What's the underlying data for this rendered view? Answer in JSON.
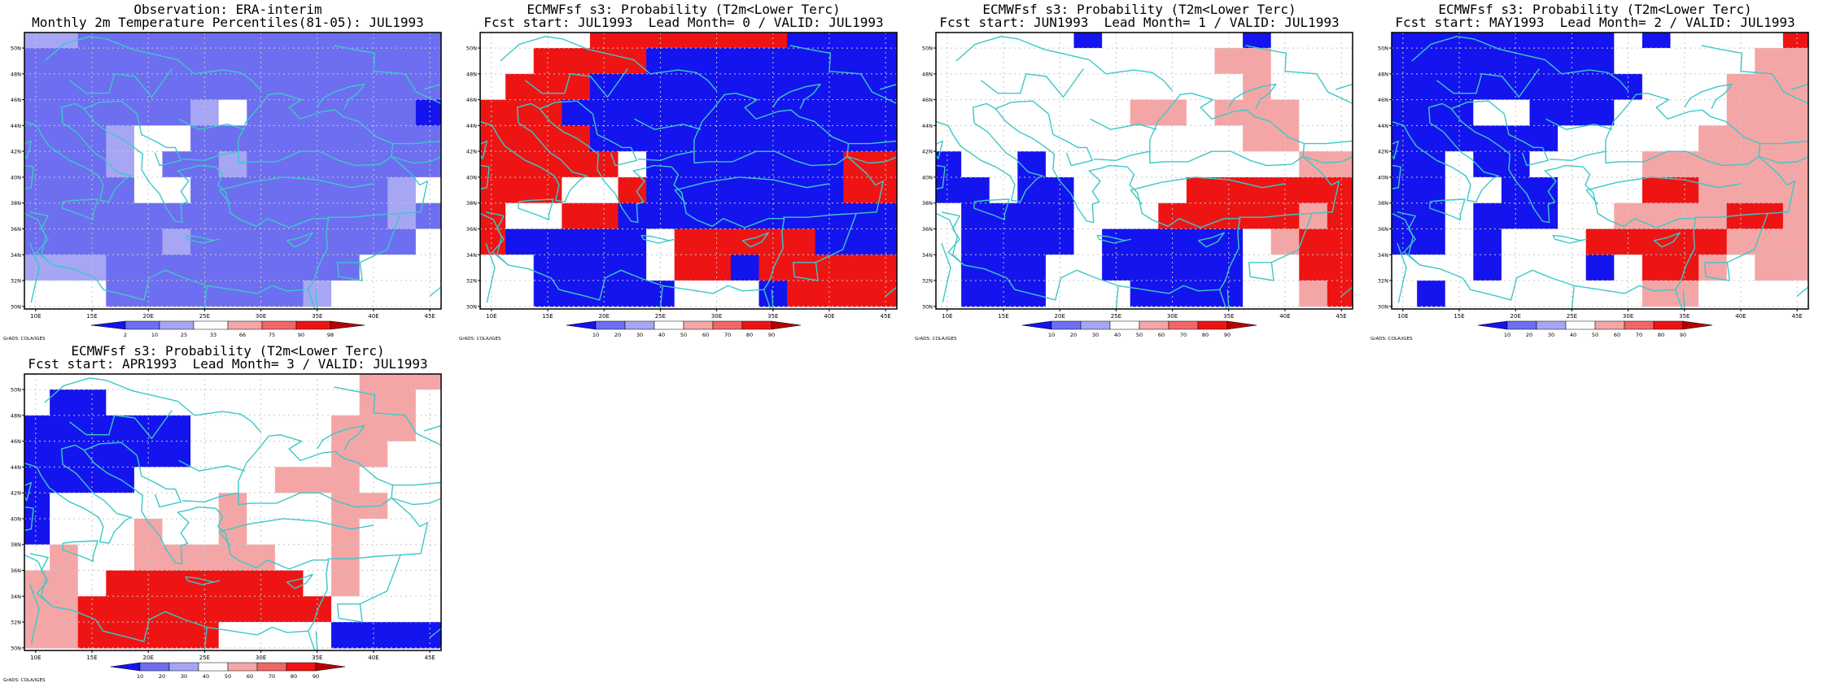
{
  "colors": {
    "dblue": "#1414ee",
    "mblue": "#6e6ef0",
    "lblue": "#a6a6f4",
    "white": "#ffffff",
    "lred": "#f4a6a6",
    "mred": "#f06666",
    "red": "#ee1414",
    "dred": "#b80000",
    "coast": "#3cc8c8",
    "grid": "#c8c8c8"
  },
  "axes": {
    "x_ticks": [
      {
        "v": 10,
        "label": "10E"
      },
      {
        "v": 15,
        "label": "15E"
      },
      {
        "v": 20,
        "label": "20E"
      },
      {
        "v": 25,
        "label": "25E"
      },
      {
        "v": 30,
        "label": "30E"
      },
      {
        "v": 35,
        "label": "35E"
      },
      {
        "v": 40,
        "label": "40E"
      },
      {
        "v": 45,
        "label": "45E"
      }
    ],
    "y_ticks": [
      {
        "v": 30,
        "label": "30N"
      },
      {
        "v": 32,
        "label": "32N"
      },
      {
        "v": 34,
        "label": "34N"
      },
      {
        "v": 36,
        "label": "36N"
      },
      {
        "v": 38,
        "label": "38N"
      },
      {
        "v": 40,
        "label": "40N"
      },
      {
        "v": 42,
        "label": "42N"
      },
      {
        "v": 44,
        "label": "44N"
      },
      {
        "v": 46,
        "label": "46N"
      },
      {
        "v": 48,
        "label": "48N"
      },
      {
        "v": 50,
        "label": "50N"
      }
    ],
    "xlim": [
      9,
      46
    ],
    "ylim": [
      29.8,
      51.2
    ]
  },
  "credit": "GrADS: COLA/IGES",
  "chart_data": [
    {
      "type": "heatmap",
      "title_line1": "Observation: ERA-interim",
      "title_line2": "Monthly 2m Temperature Percentiles(81-05): JUL1993",
      "x": [
        10,
        12.5,
        15,
        17.5,
        20,
        22.5,
        25,
        27.5,
        30,
        32.5,
        35,
        37.5,
        40,
        42.5,
        45
      ],
      "y": [
        51,
        49,
        47,
        45,
        43,
        41,
        39,
        37,
        35,
        33,
        31
      ],
      "colorbar": {
        "boundaries": [
          "2",
          "10",
          "25",
          "33",
          "66",
          "75",
          "90",
          "98"
        ],
        "colors": [
          "dblue",
          "mblue",
          "lblue",
          "white",
          "lred",
          "mred",
          "red",
          "dred"
        ]
      },
      "grid": [
        "LLMMMMMMMMMMMMM",
        "MMMMMMMMMMMMMMM",
        "MMMMMMMMMMMMMMM",
        "MMMMMMLWMMMMMMD",
        "MMMLWWMMMMMMMMM",
        "MMMLWMMLMMMMMMM",
        "MMMMWWMMMMMMMLW",
        "MMMMMMMMMMMMMLM",
        "MMMMMLMMMMMMMMW",
        "LLLMMMMMMMMMWWW",
        "WWWMMMMMMMLWWWW"
      ]
    },
    {
      "type": "heatmap",
      "title_line1": "ECMWFsf s3: Probability (T2m<Lower Terc)",
      "title_line2": "Fcst start: JUL1993  Lead Month= 0 / VALID: JUL1993",
      "x": [
        10,
        12.5,
        15,
        17.5,
        20,
        22.5,
        25,
        27.5,
        30,
        32.5,
        35,
        37.5,
        40,
        42.5,
        45
      ],
      "y": [
        51,
        49,
        47,
        45,
        43,
        41,
        39,
        37,
        35,
        33,
        31
      ],
      "colorbar": {
        "boundaries": [
          "10",
          "20",
          "30",
          "40",
          "50",
          "60",
          "70",
          "80",
          "90"
        ],
        "colors": [
          "dblue",
          "mblue",
          "lblue",
          "white",
          "lred",
          "mred",
          "red",
          "dred"
        ]
      },
      "grid": [
        "WWWWRRRRRRRDDDD",
        "WWRRRRDDDDDDDDD",
        "WRRRDDDDDDDDDDD",
        "RRRDDDDDDDDDDDD",
        "RRRRDDDDDDDDDDD",
        "RRRRRWDDDDDDDRR",
        "RRRWWRDDDDDDDRR",
        "RWWRRDDDDDDDDDD",
        "RDDBBBWRRRRRDDD",
        "WWBBBBWRRDRRRRR",
        "WWBBBBBWWWDRRRR"
      ]
    },
    {
      "type": "heatmap",
      "title_line1": "ECMWFsf s3: Probability (T2m<Lower Terc)",
      "title_line2": "Fcst start: JUN1993  Lead Month= 1 / VALID: JUL1993",
      "x": [
        10,
        12.5,
        15,
        17.5,
        20,
        22.5,
        25,
        27.5,
        30,
        32.5,
        35,
        37.5,
        40,
        42.5,
        45
      ],
      "y": [
        51,
        49,
        47,
        45,
        43,
        41,
        39,
        37,
        35,
        33,
        31
      ],
      "colorbar": {
        "boundaries": [
          "10",
          "20",
          "30",
          "40",
          "50",
          "60",
          "70",
          "80",
          "90"
        ],
        "colors": [
          "dblue",
          "mblue",
          "lblue",
          "white",
          "lred",
          "mred",
          "red",
          "dred"
        ]
      },
      "grid": [
        "WWWWWBWWWWWBWWW",
        "WWWWWWWWWWPPWWW",
        "WWWWWWWWWWWPWWW",
        "WWWWWWWPPWPPPWW",
        "WWWWWWWWWWWPPWW",
        "BWWBWWWWWWWWWPP",
        "BBWBBWWWWRRRRRR",
        "WBBBBWWWRRRRRPR",
        "WBBBBWBBBBBWPRR",
        "WBBBWWBBBBBWWRR",
        "WBBBWWWBBBBWWPR"
      ]
    },
    {
      "type": "heatmap",
      "title_line1": "ECMWFsf s3: Probability (T2m<Lower Terc)",
      "title_line2": "Fcst start: MAY1993  Lead Month= 2 / VALID: JUL1993",
      "x": [
        10,
        12.5,
        15,
        17.5,
        20,
        22.5,
        25,
        27.5,
        30,
        32.5,
        35,
        37.5,
        40,
        42.5,
        45
      ],
      "y": [
        51,
        49,
        47,
        45,
        43,
        41,
        39,
        37,
        35,
        33,
        31
      ],
      "colorbar": {
        "boundaries": [
          "10",
          "20",
          "30",
          "40",
          "50",
          "60",
          "70",
          "80",
          "90"
        ],
        "colors": [
          "dblue",
          "mblue",
          "lblue",
          "white",
          "lred",
          "mred",
          "red",
          "dred"
        ]
      },
      "grid": [
        "BBBBBBBBWBWWWWR",
        "BBBBBBBBWWWWWPP",
        "BBBBBBBBBWWWPPP",
        "BBBWWBBBWWWWPPP",
        "BBBBBBWWWWWPPPP",
        "BBWBBWWWWPPPPPP",
        "BBWWBBWWWRRPPPP",
        "BBWBBBWWPPPPRRP",
        "BBWBWWWRRRRRPPP",
        "WWWBWWWBWRRPWPP",
        "WBWWWWWWWPPWWWW"
      ]
    },
    {
      "type": "heatmap",
      "title_line1": "ECMWFsf s3: Probability (T2m<Lower Terc)",
      "title_line2": "Fcst start: APR1993  Lead Month= 3 / VALID: JUL1993",
      "x": [
        10,
        12.5,
        15,
        17.5,
        20,
        22.5,
        25,
        27.5,
        30,
        32.5,
        35,
        37.5,
        40,
        42.5,
        45
      ],
      "y": [
        51,
        49,
        47,
        45,
        43,
        41,
        39,
        37,
        35,
        33,
        31
      ],
      "colorbar": {
        "boundaries": [
          "10",
          "20",
          "30",
          "40",
          "50",
          "60",
          "70",
          "80",
          "90"
        ],
        "colors": [
          "dblue",
          "mblue",
          "lblue",
          "white",
          "lred",
          "mred",
          "red",
          "dred"
        ]
      },
      "grid": [
        "WWWWWWWWWWWWPPP",
        "WBBWWWWWWWWWPPW",
        "BBBBBBWWWWWPPPW",
        "BBBBBBWWWWWPPWW",
        "BBBBWWWWWPPPWWW",
        "BWWWWWWPWWWPPWW",
        "BWWWPWWPWWWPWWW",
        "WPWWPPPPPWWPWWW",
        "PPWRRRRRRRWPWWW",
        "PPRRRRRRRRRWWWW",
        "PPRRRRRWWWWBBBB"
      ]
    }
  ]
}
